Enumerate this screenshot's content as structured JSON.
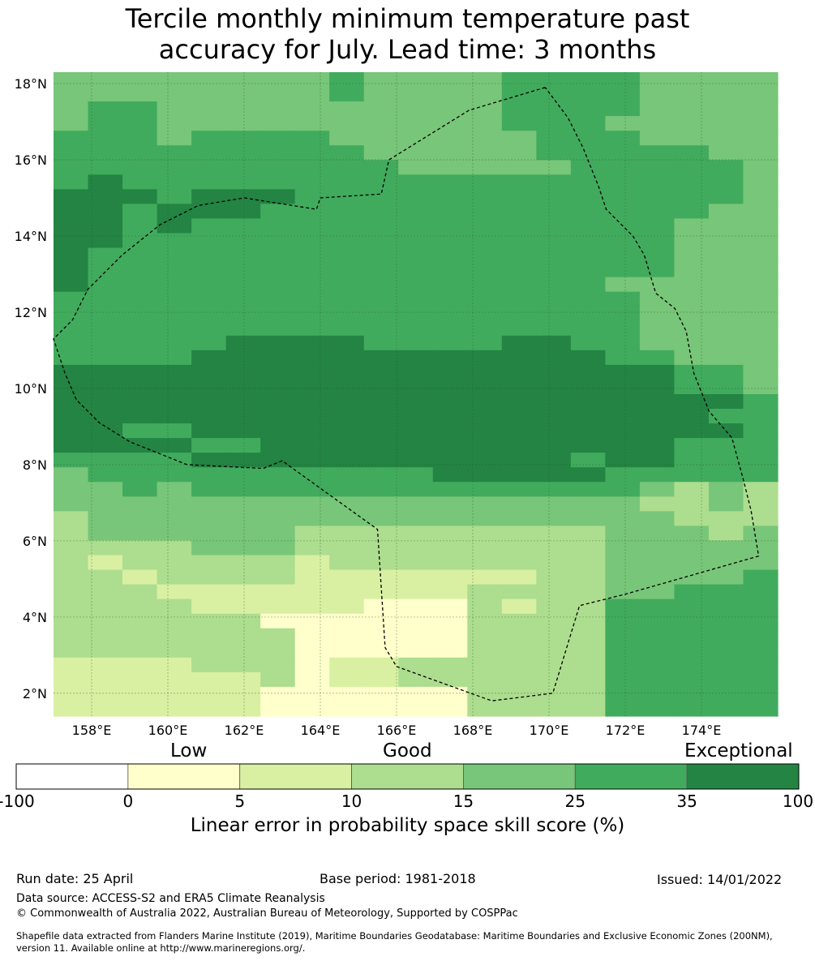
{
  "title_lines": [
    "Tercile monthly minimum temperature past",
    "accuracy for July. Lead time: 3 months"
  ],
  "map": {
    "lat_labels": [
      "18°N",
      "16°N",
      "14°N",
      "12°N",
      "10°N",
      "8°N",
      "6°N",
      "4°N",
      "2°N"
    ],
    "lon_labels": [
      "158°E",
      "160°E",
      "162°E",
      "164°E",
      "166°E",
      "168°E",
      "170°E",
      "172°E",
      "174°E"
    ],
    "lat_values": [
      18,
      16,
      14,
      12,
      10,
      8,
      6,
      4,
      2
    ],
    "lon_values": [
      158,
      160,
      162,
      164,
      166,
      168,
      170,
      172,
      174
    ],
    "extent": {
      "lon_min": 157.0,
      "lon_max": 176.0,
      "lat_min": 1.4,
      "lat_max": 18.3
    },
    "grid_lon_start": 157.0,
    "grid_lat_top": 18.3,
    "grid_note_rows_top_to_bottom": true,
    "grid": [
      "555555556555566665555",
      "555555556555566665555",
      "566555555555566665555",
      "566555555555566655555",
      "666566665555556665555",
      "666666666555556666655",
      "666666666655555666665",
      "676666666666666666665",
      "777677766666666666665",
      "776777666666666666655",
      "776766666666666666555",
      "776666666666666666555",
      "766666666666666666555",
      "766666666666666666555",
      "766666666666666655555",
      "666666666666666665555",
      "666666666666666665555",
      "666666666666666665555",
      "666667777666677665555",
      "666677777777777766555",
      "777777777777777777665",
      "777777777777777777665",
      "777777777777777777776",
      "777777777777777777766",
      "776677777777777777776",
      "777766777777777777666",
      "666677777777777677666",
      "566666666667777766666",
      "556566666666666665454",
      "555555555555555554454",
      "455555555555555555444",
      "455555544444444455545",
      "444455544444444455555",
      "434444434444444455555",
      "443444433333334455556",
      "444333333333444455666",
      "444433333222434466666",
      "444444222222444466666",
      "444444422222444466666",
      "444444422222444466666",
      "333344423344444466666",
      "333333423344444466666",
      "333333222222444466666",
      "333333222222444466666"
    ],
    "color_classes": {
      "0": "#ffffff",
      "1": "#ffffcc",
      "2": "#ffffcc",
      "3": "#d9f0a3",
      "4": "#addd8e",
      "5": "#78c679",
      "6": "#41ab5d",
      "7": "#238443"
    },
    "eez_boundary": [
      [
        169.9,
        17.9
      ],
      [
        167.9,
        17.3
      ],
      [
        165.8,
        16.0
      ],
      [
        165.6,
        15.1
      ],
      [
        164.0,
        15.0
      ],
      [
        163.9,
        14.7
      ],
      [
        162.0,
        15.0
      ],
      [
        160.8,
        14.8
      ],
      [
        159.8,
        14.3
      ],
      [
        158.8,
        13.5
      ],
      [
        157.9,
        12.6
      ],
      [
        157.5,
        11.8
      ],
      [
        157.0,
        11.3
      ],
      [
        157.3,
        10.4
      ],
      [
        157.6,
        9.7
      ],
      [
        158.2,
        9.1
      ],
      [
        159.0,
        8.6
      ],
      [
        160.5,
        8.0
      ],
      [
        162.5,
        7.9
      ],
      [
        163.0,
        8.1
      ],
      [
        165.5,
        6.3
      ],
      [
        165.7,
        3.2
      ],
      [
        166.0,
        2.7
      ],
      [
        168.5,
        1.8
      ],
      [
        170.1,
        2.0
      ],
      [
        170.8,
        4.3
      ],
      [
        172.0,
        4.6
      ],
      [
        175.5,
        5.6
      ],
      [
        175.3,
        6.8
      ],
      [
        175.1,
        7.6
      ],
      [
        174.8,
        8.7
      ],
      [
        174.2,
        9.4
      ],
      [
        173.8,
        10.4
      ],
      [
        173.6,
        11.5
      ],
      [
        173.3,
        12.1
      ],
      [
        172.8,
        12.5
      ],
      [
        172.5,
        13.5
      ],
      [
        172.2,
        14.0
      ],
      [
        171.5,
        14.7
      ],
      [
        171.3,
        15.3
      ],
      [
        170.9,
        16.3
      ],
      [
        170.5,
        17.1
      ],
      [
        169.9,
        17.9
      ]
    ]
  },
  "colorbar": {
    "category_labels": [
      "Low",
      "Good",
      "Exceptional"
    ],
    "tick_labels": [
      "-100",
      "0",
      "5",
      "10",
      "15",
      "25",
      "35",
      "100"
    ],
    "colors": [
      "#ffffff",
      "#ffffcc",
      "#d9f0a3",
      "#addd8e",
      "#78c679",
      "#41ab5d",
      "#238443"
    ],
    "title": "Linear error in probability space skill score (%)"
  },
  "footer": {
    "run_date": "Run date: 25 April",
    "base_period": "Base period: 1981-2018",
    "issued": "Issued: 14/01/2022",
    "data_source": "Data source: ACCESS-S2 and ERA5 Climate Reanalysis",
    "copyright": "© Commonwealth of Australia 2022, Australian Bureau of Meteorology, Supported by COSPPac",
    "shapefile_line1": "Shapefile data extracted from Flanders Marine Institute (2019), Maritime Boundaries Geodatabase: Maritime Boundaries and Exclusive Economic Zones (200NM),",
    "shapefile_line2": "version 11. Available online at http://www.marineregions.org/."
  }
}
